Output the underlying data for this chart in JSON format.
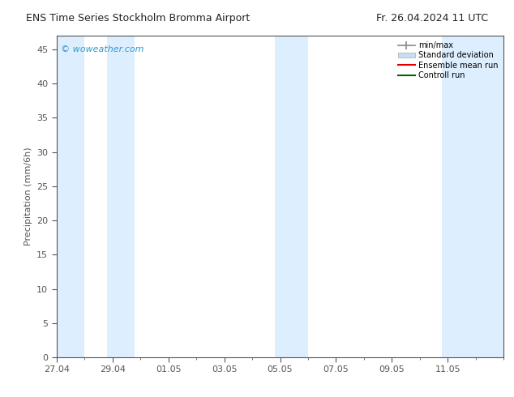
{
  "title_left": "ENS Time Series Stockholm Bromma Airport",
  "title_right": "Fr. 26.04.2024 11 UTC",
  "ylabel": "Precipitation (mm/6h)",
  "watermark": "© woweather.com",
  "watermark_color": "#3399cc",
  "ylim": [
    0,
    47
  ],
  "yticks": [
    0,
    5,
    10,
    15,
    20,
    25,
    30,
    35,
    40,
    45
  ],
  "xlim": [
    0,
    16
  ],
  "x_tick_labels": [
    "27.04",
    "29.04",
    "01.05",
    "03.05",
    "05.05",
    "07.05",
    "09.05",
    "11.05"
  ],
  "x_tick_positions": [
    0,
    2,
    4,
    6,
    8,
    10,
    12,
    14
  ],
  "shaded_bands": [
    {
      "x_start": 0.0,
      "x_end": 1.0,
      "color": "#ddeeff"
    },
    {
      "x_start": 1.8,
      "x_end": 2.8,
      "color": "#ddeeff"
    },
    {
      "x_start": 7.8,
      "x_end": 9.0,
      "color": "#ddeeff"
    },
    {
      "x_start": 13.8,
      "x_end": 16.0,
      "color": "#ddeeff"
    }
  ],
  "legend_entries": [
    {
      "label": "min/max",
      "color": "#aaaaaa",
      "type": "minmax"
    },
    {
      "label": "Standard deviation",
      "color": "#c8ddf0",
      "type": "fill"
    },
    {
      "label": "Ensemble mean run",
      "color": "#dd0000",
      "type": "line"
    },
    {
      "label": "Controll run",
      "color": "#006600",
      "type": "line"
    }
  ],
  "background_color": "#ffffff",
  "plot_bg_color": "#ffffff",
  "spine_color": "#555555",
  "tick_color": "#555555",
  "title_fontsize": 9,
  "ylabel_fontsize": 8,
  "tick_fontsize": 8,
  "legend_fontsize": 7,
  "watermark_fontsize": 8
}
